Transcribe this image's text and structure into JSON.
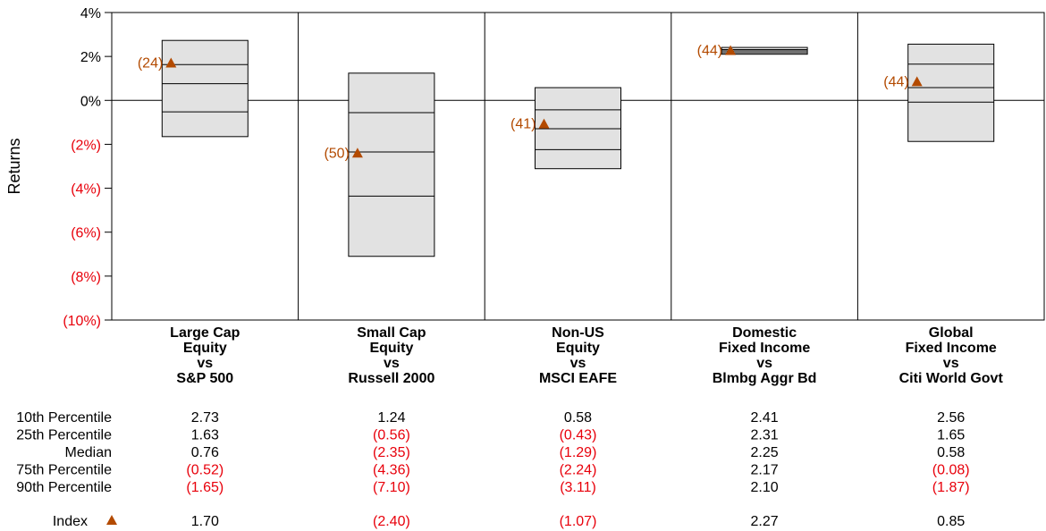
{
  "chart_data": {
    "type": "box",
    "ylabel": "Returns",
    "ylim": [
      -10,
      4
    ],
    "y_ticks": [
      4,
      2,
      0,
      -2,
      -4,
      -6,
      -8,
      -10
    ],
    "y_tick_labels": [
      "4%",
      "2%",
      "0%",
      "(2%)",
      "(4%)",
      "(6%)",
      "(8%)",
      "(10%)"
    ],
    "categories": [
      [
        "Large Cap",
        "Equity",
        "vs",
        "S&P 500"
      ],
      [
        "Small Cap",
        "Equity",
        "vs",
        "Russell 2000"
      ],
      [
        "Non-US",
        "Equity",
        "vs",
        "MSCI EAFE"
      ],
      [
        "Domestic",
        "Fixed Income",
        "vs",
        "Blmbg Aggr Bd"
      ],
      [
        "Global",
        "Fixed Income",
        "vs",
        "Citi World Govt"
      ]
    ],
    "row_labels": [
      "10th Percentile",
      "25th Percentile",
      "Median",
      "75th Percentile",
      "90th Percentile"
    ],
    "percentiles": [
      [
        2.73,
        1.63,
        0.76,
        -0.52,
        -1.65
      ],
      [
        1.24,
        -0.56,
        -2.35,
        -4.36,
        -7.1
      ],
      [
        0.58,
        -0.43,
        -1.29,
        -2.24,
        -3.11
      ],
      [
        2.41,
        2.31,
        2.25,
        2.17,
        2.1
      ],
      [
        2.56,
        1.65,
        0.58,
        -0.08,
        -1.87
      ]
    ],
    "index_label": "Index",
    "index_values": [
      1.7,
      -2.4,
      -1.07,
      2.27,
      0.85
    ],
    "index_ranks": [
      "(24)",
      "(50)",
      "(41)",
      "(44)",
      "(44)"
    ],
    "colors": {
      "box_fill": "#e2e2e2",
      "line": "#000000",
      "negative": "#e8000b",
      "marker": "#b34a00",
      "rank_text": "#b34a00"
    }
  }
}
